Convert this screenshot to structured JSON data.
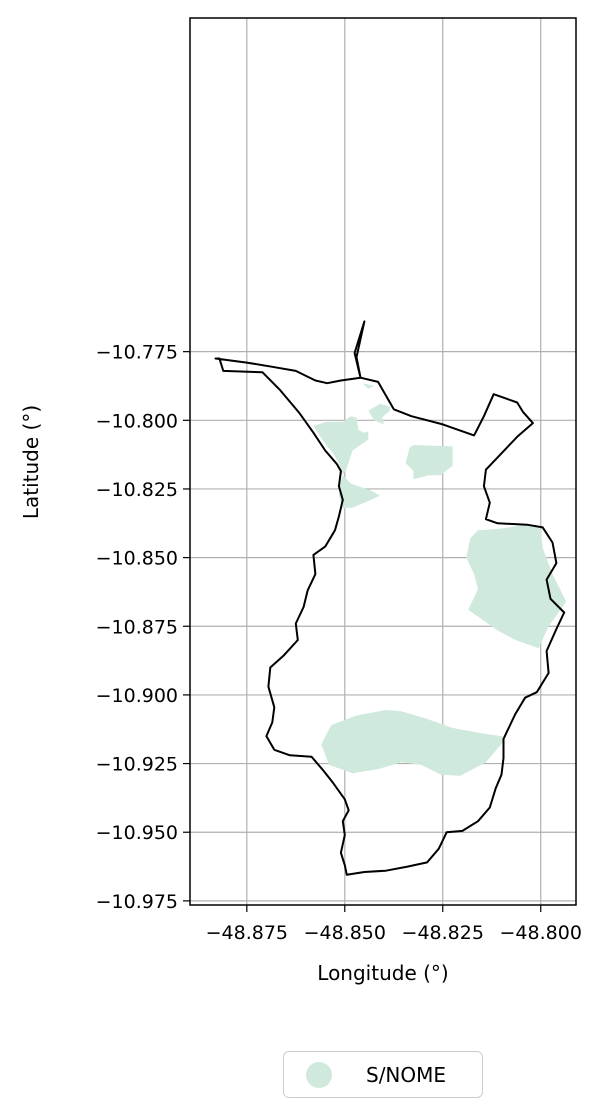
{
  "chart_data": {
    "type": "map",
    "xlabel": "Longitude (°)",
    "ylabel": "Latitude (°)",
    "xlim": [
      -48.8895,
      -48.791
    ],
    "ylim": [
      -10.9765,
      -10.6535
    ],
    "x_ticks": [
      -48.875,
      -48.85,
      -48.825,
      -48.8
    ],
    "x_tick_labels": [
      "−48.875",
      "−48.850",
      "−48.825",
      "−48.800"
    ],
    "y_ticks": [
      -10.775,
      -10.8,
      -10.825,
      -10.85,
      -10.875,
      -10.9,
      -10.925,
      -10.95,
      -10.975
    ],
    "y_tick_labels": [
      "−10.775",
      "−10.800",
      "−10.825",
      "−10.850",
      "−10.875",
      "−10.900",
      "−10.925",
      "−10.950",
      "−10.975"
    ],
    "grid": true,
    "legend_position": "bottom-center",
    "boundary_color": "#000000",
    "layers": [
      {
        "name": "S/NOME",
        "color": "#cfeadc",
        "regions": [
          [
            [
              -48.8505,
              -10.8005
            ],
            [
              -48.8485,
              -10.7985
            ],
            [
              -48.847,
              -10.799
            ],
            [
              -48.8465,
              -10.8035
            ],
            [
              -48.845,
              -10.8045
            ],
            [
              -48.844,
              -10.804
            ],
            [
              -48.844,
              -10.807
            ],
            [
              -48.848,
              -10.811
            ],
            [
              -48.8495,
              -10.8175
            ],
            [
              -48.8505,
              -10.82
            ],
            [
              -48.8515,
              -10.8155
            ],
            [
              -48.853,
              -10.812
            ],
            [
              -48.8555,
              -10.8075
            ],
            [
              -48.858,
              -10.802
            ],
            [
              -48.8545,
              -10.8005
            ]
          ],
          [
            [
              -48.8505,
              -10.82
            ],
            [
              -48.8485,
              -10.823
            ],
            [
              -48.8465,
              -10.824
            ],
            [
              -48.8435,
              -10.8255
            ],
            [
              -48.841,
              -10.8275
            ],
            [
              -48.845,
              -10.83
            ],
            [
              -48.848,
              -10.8318
            ],
            [
              -48.8505,
              -10.832
            ],
            [
              -48.8515,
              -10.8275
            ],
            [
              -48.8512,
              -10.823
            ]
          ],
          [
            [
              -48.841,
              -10.794
            ],
            [
              -48.8385,
              -10.795
            ],
            [
              -48.8385,
              -10.7965
            ],
            [
              -48.8405,
              -10.799
            ],
            [
              -48.84,
              -10.8015
            ],
            [
              -48.8425,
              -10.8
            ],
            [
              -48.844,
              -10.7965
            ]
          ],
          [
            [
              -48.8455,
              -10.7865
            ],
            [
              -48.844,
              -10.7885
            ],
            [
              -48.8425,
              -10.7875
            ]
          ],
          [
            [
              -48.8325,
              -10.809
            ],
            [
              -48.8225,
              -10.8095
            ],
            [
              -48.8225,
              -10.8165
            ],
            [
              -48.8255,
              -10.82
            ],
            [
              -48.8285,
              -10.82
            ],
            [
              -48.8325,
              -10.8215
            ],
            [
              -48.8325,
              -10.8185
            ],
            [
              -48.8345,
              -10.8155
            ],
            [
              -48.834,
              -10.813
            ],
            [
              -48.8335,
              -10.81
            ]
          ],
          [
            [
              -48.806,
              -10.8385
            ],
            [
              -48.8105,
              -10.8395
            ],
            [
              -48.816,
              -10.84
            ],
            [
              -48.818,
              -10.843
            ],
            [
              -48.819,
              -10.85
            ],
            [
              -48.817,
              -10.856
            ],
            [
              -48.816,
              -10.8615
            ],
            [
              -48.8185,
              -10.869
            ],
            [
              -48.815,
              -10.8725
            ],
            [
              -48.811,
              -10.8765
            ],
            [
              -48.8065,
              -10.88
            ],
            [
              -48.8005,
              -10.883
            ],
            [
              -48.798,
              -10.875
            ],
            [
              -48.7935,
              -10.866
            ],
            [
              -48.797,
              -10.856
            ],
            [
              -48.7995,
              -10.8465
            ],
            [
              -48.8,
              -10.8395
            ],
            [
              -48.803,
              -10.838
            ]
          ],
          [
            [
              -48.8395,
              -10.9055
            ],
            [
              -48.847,
              -10.9075
            ],
            [
              -48.8535,
              -10.911
            ],
            [
              -48.856,
              -10.918
            ],
            [
              -48.854,
              -10.9255
            ],
            [
              -48.848,
              -10.9285
            ],
            [
              -48.8415,
              -10.927
            ],
            [
              -48.8355,
              -10.9245
            ],
            [
              -48.8305,
              -10.9255
            ],
            [
              -48.8255,
              -10.929
            ],
            [
              -48.8205,
              -10.9295
            ],
            [
              -48.814,
              -10.9245
            ],
            [
              -48.8095,
              -10.917
            ],
            [
              -48.81,
              -10.915
            ],
            [
              -48.815,
              -10.914
            ],
            [
              -48.8225,
              -10.912
            ],
            [
              -48.8295,
              -10.9085
            ],
            [
              -48.8355,
              -10.906
            ]
          ]
        ]
      }
    ],
    "boundary": [
      [
        -48.882,
        -10.7775
      ],
      [
        -48.881,
        -10.782
      ],
      [
        -48.871,
        -10.7825
      ],
      [
        -48.8665,
        -10.789
      ],
      [
        -48.8615,
        -10.7975
      ],
      [
        -48.858,
        -10.8045
      ],
      [
        -48.855,
        -10.811
      ],
      [
        -48.852,
        -10.816
      ],
      [
        -48.851,
        -10.8185
      ],
      [
        -48.8515,
        -10.824
      ],
      [
        -48.8505,
        -10.829
      ],
      [
        -48.8515,
        -10.835
      ],
      [
        -48.8525,
        -10.84
      ],
      [
        -48.855,
        -10.846
      ],
      [
        -48.858,
        -10.849
      ],
      [
        -48.8575,
        -10.856
      ],
      [
        -48.8595,
        -10.862
      ],
      [
        -48.8605,
        -10.868
      ],
      [
        -48.8625,
        -10.874
      ],
      [
        -48.862,
        -10.88
      ],
      [
        -48.8655,
        -10.8855
      ],
      [
        -48.869,
        -10.89
      ],
      [
        -48.8695,
        -10.897
      ],
      [
        -48.868,
        -10.9045
      ],
      [
        -48.8685,
        -10.91
      ],
      [
        -48.87,
        -10.915
      ],
      [
        -48.868,
        -10.92
      ],
      [
        -48.864,
        -10.922
      ],
      [
        -48.8585,
        -10.9225
      ],
      [
        -48.8555,
        -10.9275
      ],
      [
        -48.853,
        -10.932
      ],
      [
        -48.85,
        -10.938
      ],
      [
        -48.849,
        -10.942
      ],
      [
        -48.8505,
        -10.946
      ],
      [
        -48.85,
        -10.951
      ],
      [
        -48.851,
        -10.9575
      ],
      [
        -48.85,
        -10.962
      ],
      [
        -48.8495,
        -10.9655
      ],
      [
        -48.845,
        -10.9645
      ],
      [
        -48.8395,
        -10.964
      ],
      [
        -48.834,
        -10.9625
      ],
      [
        -48.829,
        -10.961
      ],
      [
        -48.826,
        -10.956
      ],
      [
        -48.824,
        -10.95
      ],
      [
        -48.82,
        -10.9495
      ],
      [
        -48.816,
        -10.946
      ],
      [
        -48.813,
        -10.941
      ],
      [
        -48.8115,
        -10.934
      ],
      [
        -48.81,
        -10.929
      ],
      [
        -48.8095,
        -10.923
      ],
      [
        -48.8095,
        -10.916
      ],
      [
        -48.8065,
        -10.907
      ],
      [
        -48.804,
        -10.901
      ],
      [
        -48.801,
        -10.899
      ],
      [
        -48.798,
        -10.892
      ],
      [
        -48.7985,
        -10.884
      ],
      [
        -48.796,
        -10.876
      ],
      [
        -48.794,
        -10.87
      ],
      [
        -48.7975,
        -10.865
      ],
      [
        -48.7985,
        -10.858
      ],
      [
        -48.796,
        -10.852
      ],
      [
        -48.797,
        -10.8445
      ],
      [
        -48.7995,
        -10.839
      ],
      [
        -48.8035,
        -10.838
      ],
      [
        -48.811,
        -10.8375
      ],
      [
        -48.814,
        -10.836
      ],
      [
        -48.813,
        -10.83
      ],
      [
        -48.8145,
        -10.824
      ],
      [
        -48.814,
        -10.818
      ],
      [
        -48.811,
        -10.8135
      ],
      [
        -48.806,
        -10.806
      ],
      [
        -48.802,
        -10.801
      ],
      [
        -48.8045,
        -10.797
      ],
      [
        -48.806,
        -10.7935
      ],
      [
        -48.812,
        -10.7905
      ],
      [
        -48.8145,
        -10.7985
      ],
      [
        -48.817,
        -10.8055
      ],
      [
        -48.825,
        -10.8015
      ],
      [
        -48.833,
        -10.7985
      ],
      [
        -48.8375,
        -10.796
      ],
      [
        -48.8415,
        -10.786
      ],
      [
        -48.846,
        -10.7845
      ],
      [
        -48.8475,
        -10.7755
      ],
      [
        -48.845,
        -10.764
      ],
      [
        -48.847,
        -10.777
      ],
      [
        -48.846,
        -10.7845
      ],
      [
        -48.851,
        -10.7855
      ],
      [
        -48.8545,
        -10.7865
      ],
      [
        -48.8575,
        -10.7855
      ],
      [
        -48.8625,
        -10.782
      ],
      [
        -48.8685,
        -10.7805
      ],
      [
        -48.875,
        -10.779
      ],
      [
        -48.883,
        -10.7775
      ]
    ]
  },
  "legend": {
    "items": [
      {
        "label": "S/NOME",
        "color": "#cfeadc"
      }
    ]
  }
}
